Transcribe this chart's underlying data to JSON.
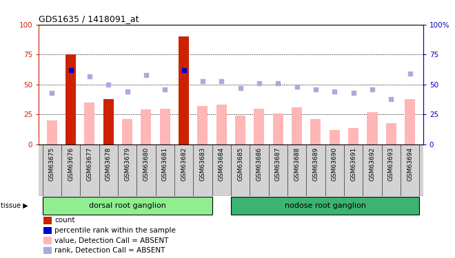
{
  "title": "GDS1635 / 1418091_at",
  "samples": [
    "GSM63675",
    "GSM63676",
    "GSM63677",
    "GSM63678",
    "GSM63679",
    "GSM63680",
    "GSM63681",
    "GSM63682",
    "GSM63683",
    "GSM63684",
    "GSM63685",
    "GSM63686",
    "GSM63687",
    "GSM63688",
    "GSM63689",
    "GSM63690",
    "GSM63691",
    "GSM63692",
    "GSM63693",
    "GSM63694"
  ],
  "bar_values": [
    20,
    75,
    35,
    38,
    21,
    29,
    30,
    90,
    32,
    33,
    24,
    30,
    26,
    31,
    21,
    12,
    14,
    27,
    18,
    38
  ],
  "bar_is_red": [
    false,
    true,
    false,
    true,
    false,
    false,
    false,
    true,
    false,
    false,
    false,
    false,
    false,
    false,
    false,
    false,
    false,
    false,
    false,
    false
  ],
  "rank_squares": [
    43,
    62,
    57,
    50,
    44,
    58,
    46,
    62,
    53,
    53,
    47,
    51,
    51,
    48,
    46,
    44,
    43,
    46,
    38,
    59
  ],
  "rank_is_blue": [
    false,
    true,
    false,
    false,
    false,
    false,
    false,
    true,
    false,
    false,
    false,
    false,
    false,
    false,
    false,
    false,
    false,
    false,
    false,
    false
  ],
  "dorsal_n": 9,
  "nodose_n": 11,
  "dorsal_color": "#90EE90",
  "nodose_color": "#3CB371",
  "bar_color_red": "#CC2200",
  "bar_color_pink": "#FFB6B6",
  "rank_color_blue": "#0000CC",
  "rank_color_lightblue": "#AAAADD",
  "bg_color": "#D3D3D3",
  "plot_bg": "#FFFFFF",
  "ylim": [
    0,
    100
  ],
  "grid_lines": [
    25,
    50,
    75
  ],
  "legend": [
    {
      "color": "#CC2200",
      "label": "count"
    },
    {
      "color": "#0000CC",
      "label": "percentile rank within the sample"
    },
    {
      "color": "#FFB6B6",
      "label": "value, Detection Call = ABSENT"
    },
    {
      "color": "#AAAADD",
      "label": "rank, Detection Call = ABSENT"
    }
  ]
}
